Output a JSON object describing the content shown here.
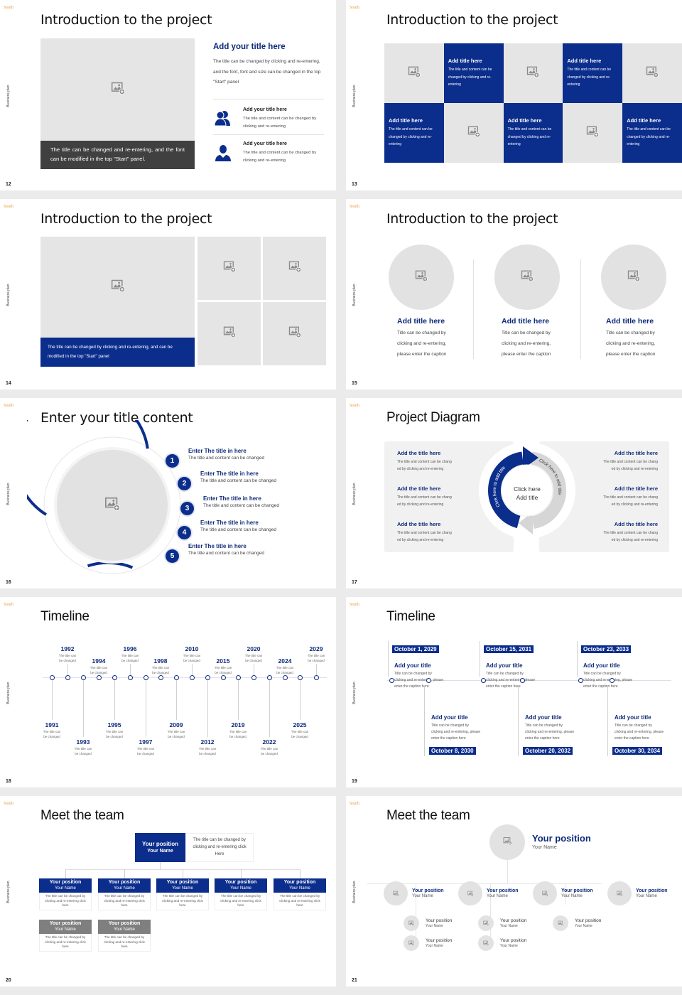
{
  "common": {
    "logo": "South",
    "side_label": "Business plan"
  },
  "colors": {
    "primary": "#0b2d8c",
    "title_text": "#0d2a7a",
    "placeholder": "#e6e5e5",
    "secondary": "#7f7f7f",
    "caption_dark": "#404040"
  },
  "s12": {
    "number": "12",
    "title": "Introduction to the project",
    "image_icon": "image-plus-icon",
    "caption": "The title can be changed and re-entering, and the font can be modified in the top \"Start\" panel.",
    "heading": "Add your title here",
    "paragraph": "The title can be changed by clicking and re-entering, and the font, font and size can be changed in the top \"Start\" panel",
    "items": [
      {
        "icon": "users-icon",
        "title": "Add your title here",
        "text": "The title and content can be changed by clicking and re-entering"
      },
      {
        "icon": "user-icon",
        "title": "Add your title here",
        "text": "The title and content can be changed by clicking and re-entering"
      }
    ]
  },
  "s13": {
    "number": "13",
    "title": "Introduction to the project",
    "tiles": [
      {
        "type": "image"
      },
      {
        "type": "text",
        "title": "Add title here",
        "text": "The title and content can be changed by clicking and re-entering"
      },
      {
        "type": "image"
      },
      {
        "type": "text",
        "title": "Add title here",
        "text": "The title and content can be changed by clicking and re-entering"
      },
      {
        "type": "image"
      },
      {
        "type": "text",
        "title": "Add title here",
        "text": "The title and content can be changed by clicking and re-entering"
      },
      {
        "type": "image"
      },
      {
        "type": "text",
        "title": "Add title here",
        "text": "The title and content can be changed by clicking and re-entering"
      },
      {
        "type": "image"
      },
      {
        "type": "text",
        "title": "Add title here",
        "text": "The title and content can be changed by clicking and re-entering"
      }
    ]
  },
  "s14": {
    "number": "14",
    "title": "Introduction to the project",
    "caption": "The title can be changed by clicking and re-entering, and can be modified in the top \"Start\" panel"
  },
  "s15": {
    "number": "15",
    "title": "Introduction to the project",
    "cards": [
      {
        "title": "Add title here",
        "lines": [
          "Title can be changed by",
          "clicking and re-entering,",
          "please enter the caption"
        ]
      },
      {
        "title": "Add title here",
        "lines": [
          "Title can be changed by",
          "clicking and re-entering,",
          "please enter the caption"
        ]
      },
      {
        "title": "Add title here",
        "lines": [
          "Title can be changed by",
          "clicking and re-entering,",
          "please enter the caption"
        ]
      }
    ]
  },
  "s16": {
    "number": "16",
    "title": "Enter your title content",
    "items": [
      {
        "n": "1",
        "title": "Enter The title in here",
        "text": "The title and content can be changed"
      },
      {
        "n": "2",
        "title": "Enter The title in here",
        "text": "The title and content can be changed"
      },
      {
        "n": "3",
        "title": "Enter The title in here",
        "text": "The title and content can be changed"
      },
      {
        "n": "4",
        "title": "Enter The title in here",
        "text": "The title and content can be changed"
      },
      {
        "n": "5",
        "title": "Enter The title in here",
        "text": "The title and content can be changed"
      }
    ]
  },
  "s17": {
    "number": "17",
    "title": "Project Diagram",
    "center": [
      "Click here",
      "Add title"
    ],
    "arrow_left": "Click here to add title",
    "arrow_right": "Click here to add title",
    "left": [
      {
        "title": "Add the title here",
        "lines": [
          "The title and content can be chang",
          "ed by clicking and re-entering"
        ]
      },
      {
        "title": "Add the title here",
        "lines": [
          "The title and content can be chang",
          "ed by clicking and re-entering"
        ]
      },
      {
        "title": "Add the title here",
        "lines": [
          "The title and content can be chang",
          "ed by clicking and re-entering"
        ]
      }
    ],
    "right": [
      {
        "title": "Add the title here",
        "lines": [
          "The title and content can be chang",
          "ed by clicking and re-entering"
        ]
      },
      {
        "title": "Add the title here",
        "lines": [
          "The title and content can be chang",
          "ed by clicking and re-entering"
        ]
      },
      {
        "title": "Add the title here",
        "lines": [
          "The title and content can be chang",
          "ed by clicking and re-entering"
        ]
      }
    ]
  },
  "s18": {
    "number": "18",
    "title": "Timeline",
    "events": [
      {
        "year": "1991",
        "text": "The title can be changed"
      },
      {
        "year": "1992",
        "text": "The title can be changed"
      },
      {
        "year": "1993",
        "text": "The title can be changed"
      },
      {
        "year": "1994",
        "text": "The title can be changed"
      },
      {
        "year": "1995",
        "text": "The title can be changed"
      },
      {
        "year": "1996",
        "text": "The title can be changed"
      },
      {
        "year": "1997",
        "text": "The title can be changed"
      },
      {
        "year": "1998",
        "text": "The title can be changed"
      },
      {
        "year": "2009",
        "text": "The title can be changed"
      },
      {
        "year": "2010",
        "text": "The title can be changed"
      },
      {
        "year": "2012",
        "text": "The title can be changed"
      },
      {
        "year": "2015",
        "text": "The title can be changed"
      },
      {
        "year": "2019",
        "text": "The title can be changed"
      },
      {
        "year": "2020",
        "text": "The title can be changed"
      },
      {
        "year": "2022",
        "text": "The title can be changed"
      },
      {
        "year": "2024",
        "text": "The title can be changed"
      },
      {
        "year": "2025",
        "text": "The title can be changed"
      },
      {
        "year": "2029",
        "text": "The title can be changed"
      }
    ]
  },
  "s19": {
    "number": "19",
    "title": "Timeline",
    "events": [
      {
        "date": "October 1, 2029",
        "title": "Add your title",
        "lines": [
          "Title can be changed by",
          "clicking and re-entering, please",
          "enter the caption here"
        ]
      },
      {
        "date": "October 8, 2030",
        "title": "Add your title",
        "lines": [
          "Title can be changed by",
          "clicking and re-entering, please",
          "enter the caption here"
        ]
      },
      {
        "date": "October 15, 2031",
        "title": "Add your title",
        "lines": [
          "Title can be changed by",
          "clicking and re-entering, please",
          "enter the caption here"
        ]
      },
      {
        "date": "October 20, 2032",
        "title": "Add your title",
        "lines": [
          "Title can be changed by",
          "clicking and re-entering, please",
          "enter the caption here"
        ]
      },
      {
        "date": "October 23, 2033",
        "title": "Add your title",
        "lines": [
          "Title can be changed by",
          "clicking and re-entering, please",
          "enter the caption here"
        ]
      },
      {
        "date": "October 30, 2034",
        "title": "Add your title",
        "lines": [
          "Title can be changed by",
          "clicking and re-entering, please",
          "enter the caption here"
        ]
      }
    ]
  },
  "s20": {
    "number": "20",
    "title": "Meet the team",
    "lead": {
      "position": "Your position",
      "name": "Your Name",
      "text": "The title can be changed by clicking and re-entering click Here"
    },
    "members": [
      {
        "position": "Your position",
        "name": "Your Name",
        "text": "The title can be changed by clicking and re-entering click here",
        "color": "primary"
      },
      {
        "position": "Your position",
        "name": "Your Name",
        "text": "The title can be changed by clicking and re-entering click here",
        "color": "primary"
      },
      {
        "position": "Your position",
        "name": "Your Name",
        "text": "The title can be changed by clicking and re-entering click here",
        "color": "primary"
      },
      {
        "position": "Your position",
        "name": "Your Name",
        "text": "The title can be changed by clicking and re-entering click here",
        "color": "primary"
      },
      {
        "position": "Your position",
        "name": "Your Name",
        "text": "The title can be changed by clicking and re-entering click here",
        "color": "primary"
      },
      {
        "position": "Your position",
        "name": "Your Name",
        "text": "The title can be changed by clicking and re-entering click here",
        "color": "secondary"
      },
      {
        "position": "Your position",
        "name": "Your Name",
        "text": "The title can be changed by clicking and re-entering click here",
        "color": "secondary"
      }
    ]
  },
  "s21": {
    "number": "21",
    "title": "Meet the team",
    "lead": {
      "position": "Your position",
      "name": "Your Name"
    },
    "managers": [
      {
        "position": "Your position",
        "name": "Your Name"
      },
      {
        "position": "Your position",
        "name": "Your Name"
      },
      {
        "position": "Your position",
        "name": "Your Name"
      },
      {
        "position": "Your position",
        "name": "Your Name"
      }
    ],
    "staff": [
      {
        "position": "Your position",
        "name": "Your Name"
      },
      {
        "position": "Your position",
        "name": "Your Name"
      },
      {
        "position": "Your position",
        "name": "Your Name"
      },
      {
        "position": "Your position",
        "name": "Your Name"
      },
      {
        "position": "Your position",
        "name": "Your Name"
      }
    ]
  }
}
